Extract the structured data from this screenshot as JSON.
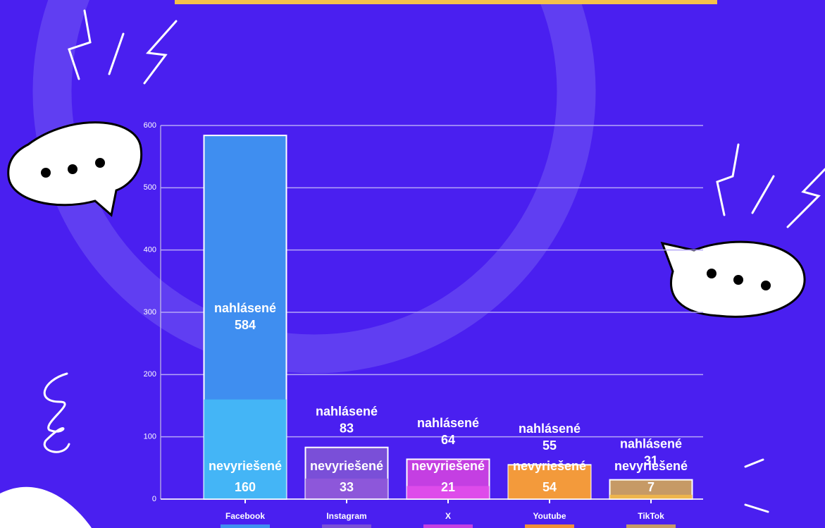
{
  "chart_data": {
    "type": "bar",
    "categories": [
      "Facebook",
      "Instagram",
      "X",
      "Youtube",
      "TikTok"
    ],
    "series": [
      {
        "name": "nahlásené",
        "values": [
          584,
          83,
          64,
          55,
          31
        ],
        "colors": [
          "#3f8ef0",
          "#7a4fd8",
          "#c43fe2",
          "#ef8f38",
          "#c69a66"
        ]
      },
      {
        "name": "nevyriešené",
        "values": [
          160,
          33,
          21,
          54,
          7
        ],
        "colors": [
          "#45b9f6",
          "#8f58da",
          "#e14ceb",
          "#f39b3c",
          "#f2b84a"
        ]
      }
    ],
    "ylim": [
      0,
      600
    ],
    "yticks": [
      0,
      100,
      200,
      300,
      400,
      500,
      600
    ],
    "grid": true
  }
}
